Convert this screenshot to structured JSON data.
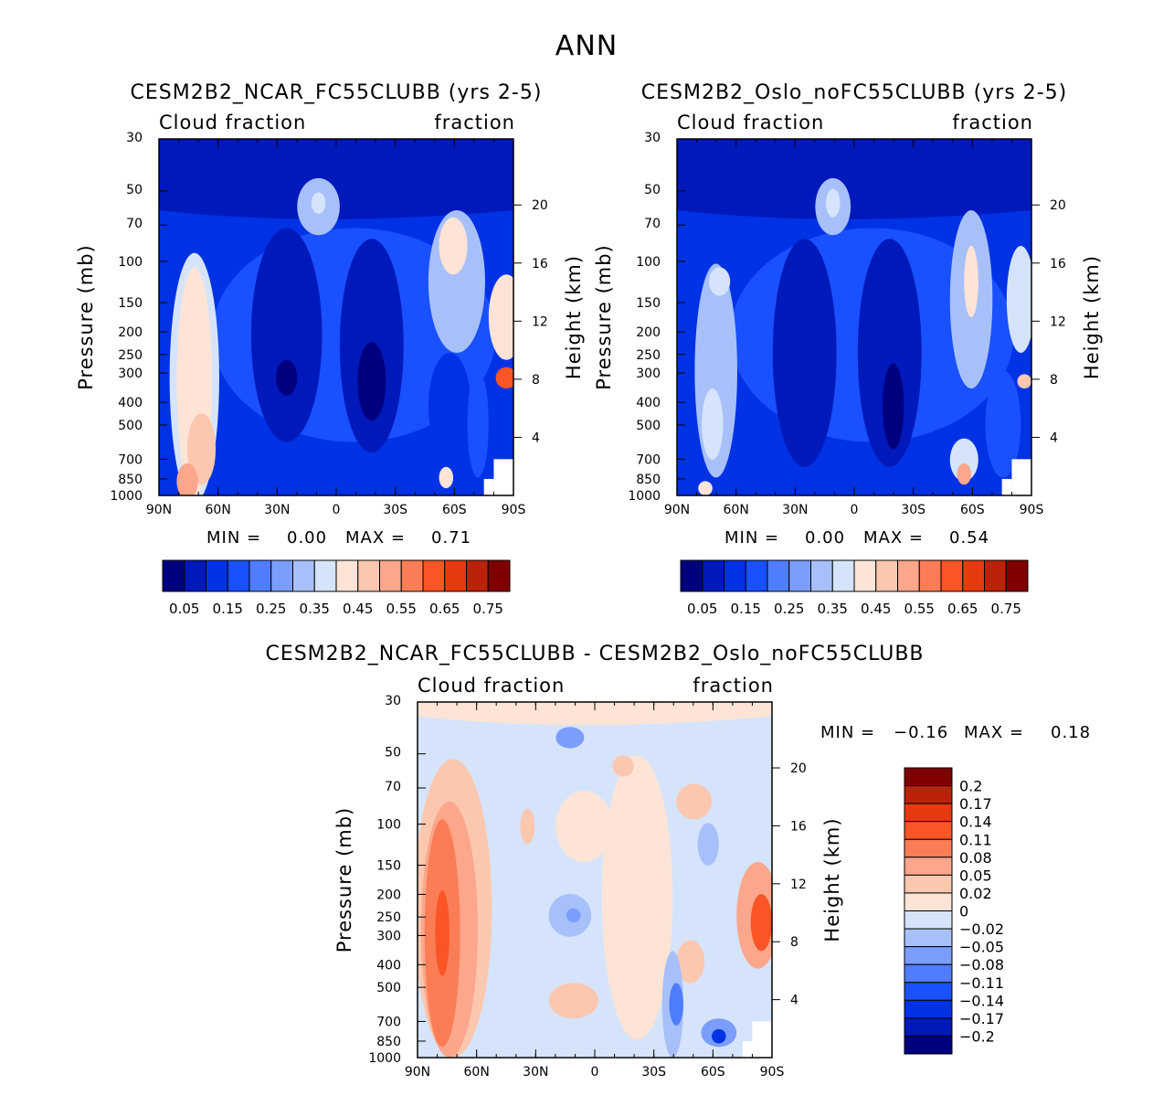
{
  "title": "ANN",
  "palettes": {
    "abs": [
      "#00007f",
      "#0019bb",
      "#0032e5",
      "#1950ff",
      "#4f7dff",
      "#7b9dfc",
      "#a8c0fa",
      "#d5e4fa",
      "#fde4d6",
      "#fcc7af",
      "#fca68b",
      "#fa7d56",
      "#fb5425",
      "#e53a10",
      "#bb220a",
      "#7f0000"
    ],
    "diff": [
      "#00007f",
      "#0019bb",
      "#0032e5",
      "#1950ff",
      "#4f7dff",
      "#7b9dfc",
      "#a8c0fa",
      "#d5e4fa",
      "#fde4d6",
      "#fcc7af",
      "#fca68b",
      "#fa7d56",
      "#fb5425",
      "#e53a10",
      "#bb220a",
      "#7f0000"
    ]
  },
  "chart_data": [
    {
      "type": "heatmap",
      "id": "ncar",
      "title": "CESM2B2_NCAR_FC55CLUBB (yrs 2-5)",
      "left_label": "Cloud fraction",
      "right_label": "fraction",
      "ylabel": "Pressure (mb)",
      "y2label": "Height (km)",
      "x_ticks": [
        "90N",
        "60N",
        "30N",
        "0",
        "30S",
        "60S",
        "90S"
      ],
      "x_values": [
        90,
        60,
        30,
        0,
        -30,
        -60,
        -90
      ],
      "y_ticks": [
        "30",
        "50",
        "70",
        "100",
        "150",
        "200",
        "250",
        "300",
        "400",
        "500",
        "700",
        "850",
        "1000"
      ],
      "y_values": [
        30,
        50,
        70,
        100,
        150,
        200,
        250,
        300,
        400,
        500,
        700,
        850,
        1000
      ],
      "height_ticks": [
        "20",
        "16",
        "12",
        "8",
        "4"
      ],
      "height_values": [
        20,
        16,
        12,
        8,
        4
      ],
      "ylim": [
        1000,
        30
      ],
      "min_label": "MIN =",
      "min_value": "0.00",
      "max_label": "MAX =",
      "max_value": "0.71",
      "levels": [
        "0.05",
        "0.15",
        "0.25",
        "0.35",
        "0.45",
        "0.55",
        "0.65",
        "0.75"
      ],
      "palette": "abs"
    },
    {
      "type": "heatmap",
      "id": "oslo",
      "title": "CESM2B2_Oslo_noFC55CLUBB (yrs 2-5)",
      "left_label": "Cloud fraction",
      "right_label": "fraction",
      "ylabel": "Pressure (mb)",
      "y2label": "Height (km)",
      "x_ticks": [
        "90N",
        "60N",
        "30N",
        "0",
        "30S",
        "60S",
        "90S"
      ],
      "x_values": [
        90,
        60,
        30,
        0,
        -30,
        -60,
        -90
      ],
      "y_ticks": [
        "30",
        "50",
        "70",
        "100",
        "150",
        "200",
        "250",
        "300",
        "400",
        "500",
        "700",
        "850",
        "1000"
      ],
      "y_values": [
        30,
        50,
        70,
        100,
        150,
        200,
        250,
        300,
        400,
        500,
        700,
        850,
        1000
      ],
      "height_ticks": [
        "20",
        "16",
        "12",
        "8",
        "4"
      ],
      "height_values": [
        20,
        16,
        12,
        8,
        4
      ],
      "ylim": [
        1000,
        30
      ],
      "min_label": "MIN =",
      "min_value": "0.00",
      "max_label": "MAX =",
      "max_value": "0.54",
      "levels": [
        "0.05",
        "0.15",
        "0.25",
        "0.35",
        "0.45",
        "0.55",
        "0.65",
        "0.75"
      ],
      "palette": "abs"
    },
    {
      "type": "heatmap",
      "id": "diff",
      "title": "CESM2B2_NCAR_FC55CLUBB - CESM2B2_Oslo_noFC55CLUBB",
      "left_label": "Cloud fraction",
      "right_label": "fraction",
      "ylabel": "Pressure (mb)",
      "y2label": "Height (km)",
      "x_ticks": [
        "90N",
        "60N",
        "30N",
        "0",
        "30S",
        "60S",
        "90S"
      ],
      "x_values": [
        90,
        60,
        30,
        0,
        -30,
        -60,
        -90
      ],
      "y_ticks": [
        "30",
        "50",
        "70",
        "100",
        "150",
        "200",
        "250",
        "300",
        "400",
        "500",
        "700",
        "850",
        "1000"
      ],
      "y_values": [
        30,
        50,
        70,
        100,
        150,
        200,
        250,
        300,
        400,
        500,
        700,
        850,
        1000
      ],
      "height_ticks": [
        "20",
        "16",
        "12",
        "8",
        "4"
      ],
      "height_values": [
        20,
        16,
        12,
        8,
        4
      ],
      "ylim": [
        1000,
        30
      ],
      "min_label": "MIN =",
      "min_value": "-0.16",
      "max_label": "MAX =",
      "max_value": "0.18",
      "levels": [
        "0.2",
        "0.17",
        "0.14",
        "0.11",
        "0.08",
        "0.05",
        "0.02",
        "0",
        "-0.02",
        "-0.05",
        "-0.08",
        "-0.11",
        "-0.14",
        "-0.17",
        "-0.2"
      ],
      "palette": "diff"
    }
  ]
}
